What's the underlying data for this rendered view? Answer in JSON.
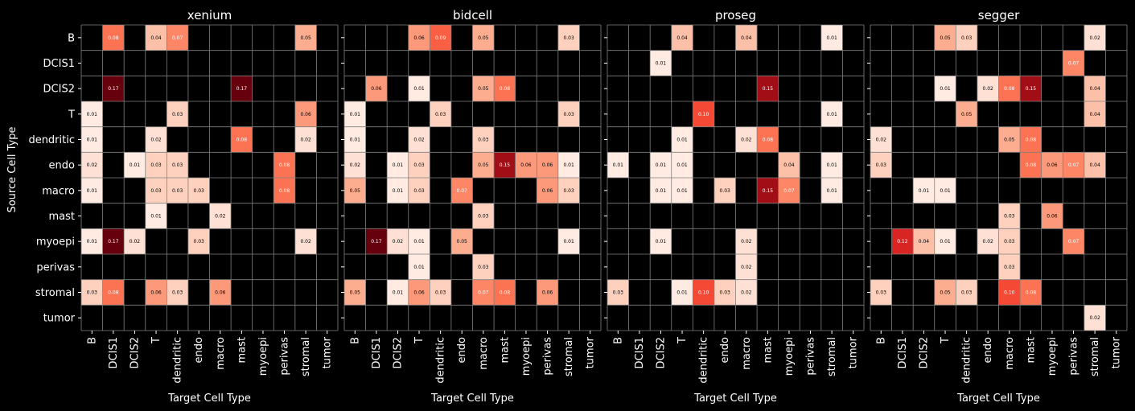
{
  "chart_data": {
    "type": "heatmap",
    "ylabel": "Source Cell Type",
    "xlabel": "Target Cell Type",
    "categories": [
      "B",
      "DCIS1",
      "DCIS2",
      "T",
      "dendritic",
      "endo",
      "macro",
      "mast",
      "myoepi",
      "perivas",
      "stromal",
      "tumor"
    ],
    "colormap": "Reds",
    "vmin": 0,
    "vmax": 0.17,
    "colors": {
      "background": "#000000",
      "text": "#ffffff",
      "grid": "#808080",
      "dark_cell_text": "#ffffff",
      "light_cell_text": "#000000"
    },
    "panels": [
      {
        "title": "xenium",
        "cells": [
          {
            "row": "B",
            "col": "DCIS1",
            "value": 0.08
          },
          {
            "row": "B",
            "col": "T",
            "value": 0.04
          },
          {
            "row": "B",
            "col": "dendritic",
            "value": 0.07
          },
          {
            "row": "B",
            "col": "stromal",
            "value": 0.05
          },
          {
            "row": "DCIS2",
            "col": "DCIS1",
            "value": 0.17
          },
          {
            "row": "DCIS2",
            "col": "mast",
            "value": 0.17
          },
          {
            "row": "T",
            "col": "B",
            "value": 0.01
          },
          {
            "row": "T",
            "col": "dendritic",
            "value": 0.03
          },
          {
            "row": "T",
            "col": "stromal",
            "value": 0.06
          },
          {
            "row": "dendritic",
            "col": "B",
            "value": 0.01
          },
          {
            "row": "dendritic",
            "col": "T",
            "value": 0.02
          },
          {
            "row": "dendritic",
            "col": "mast",
            "value": 0.08
          },
          {
            "row": "dendritic",
            "col": "stromal",
            "value": 0.02
          },
          {
            "row": "endo",
            "col": "B",
            "value": 0.02
          },
          {
            "row": "endo",
            "col": "DCIS2",
            "value": 0.01
          },
          {
            "row": "endo",
            "col": "T",
            "value": 0.03
          },
          {
            "row": "endo",
            "col": "dendritic",
            "value": 0.03
          },
          {
            "row": "endo",
            "col": "perivas",
            "value": 0.08
          },
          {
            "row": "macro",
            "col": "B",
            "value": 0.01
          },
          {
            "row": "macro",
            "col": "T",
            "value": 0.03
          },
          {
            "row": "macro",
            "col": "dendritic",
            "value": 0.03
          },
          {
            "row": "macro",
            "col": "endo",
            "value": 0.03
          },
          {
            "row": "macro",
            "col": "perivas",
            "value": 0.08
          },
          {
            "row": "mast",
            "col": "T",
            "value": 0.01
          },
          {
            "row": "mast",
            "col": "macro",
            "value": 0.02
          },
          {
            "row": "myoepi",
            "col": "B",
            "value": 0.01
          },
          {
            "row": "myoepi",
            "col": "DCIS1",
            "value": 0.17
          },
          {
            "row": "myoepi",
            "col": "DCIS2",
            "value": 0.02
          },
          {
            "row": "myoepi",
            "col": "endo",
            "value": 0.03
          },
          {
            "row": "myoepi",
            "col": "stromal",
            "value": 0.02
          },
          {
            "row": "stromal",
            "col": "B",
            "value": 0.03
          },
          {
            "row": "stromal",
            "col": "DCIS1",
            "value": 0.08
          },
          {
            "row": "stromal",
            "col": "T",
            "value": 0.06
          },
          {
            "row": "stromal",
            "col": "dendritic",
            "value": 0.03
          },
          {
            "row": "stromal",
            "col": "macro",
            "value": 0.06
          }
        ]
      },
      {
        "title": "bidcell",
        "cells": [
          {
            "row": "B",
            "col": "T",
            "value": 0.06
          },
          {
            "row": "B",
            "col": "dendritic",
            "value": 0.09
          },
          {
            "row": "B",
            "col": "macro",
            "value": 0.05
          },
          {
            "row": "B",
            "col": "stromal",
            "value": 0.03
          },
          {
            "row": "DCIS2",
            "col": "DCIS1",
            "value": 0.06
          },
          {
            "row": "DCIS2",
            "col": "T",
            "value": 0.01
          },
          {
            "row": "DCIS2",
            "col": "macro",
            "value": 0.05
          },
          {
            "row": "DCIS2",
            "col": "mast",
            "value": 0.08
          },
          {
            "row": "T",
            "col": "B",
            "value": 0.01
          },
          {
            "row": "T",
            "col": "dendritic",
            "value": 0.03
          },
          {
            "row": "T",
            "col": "stromal",
            "value": 0.03
          },
          {
            "row": "dendritic",
            "col": "B",
            "value": 0.01
          },
          {
            "row": "dendritic",
            "col": "T",
            "value": 0.02
          },
          {
            "row": "dendritic",
            "col": "macro",
            "value": 0.03
          },
          {
            "row": "endo",
            "col": "B",
            "value": 0.02
          },
          {
            "row": "endo",
            "col": "DCIS2",
            "value": 0.01
          },
          {
            "row": "endo",
            "col": "T",
            "value": 0.03
          },
          {
            "row": "endo",
            "col": "macro",
            "value": 0.05
          },
          {
            "row": "endo",
            "col": "mast",
            "value": 0.15
          },
          {
            "row": "endo",
            "col": "myoepi",
            "value": 0.06
          },
          {
            "row": "endo",
            "col": "perivas",
            "value": 0.06
          },
          {
            "row": "endo",
            "col": "stromal",
            "value": 0.01
          },
          {
            "row": "macro",
            "col": "B",
            "value": 0.05
          },
          {
            "row": "macro",
            "col": "DCIS2",
            "value": 0.01
          },
          {
            "row": "macro",
            "col": "T",
            "value": 0.03
          },
          {
            "row": "macro",
            "col": "endo",
            "value": 0.07
          },
          {
            "row": "macro",
            "col": "perivas",
            "value": 0.06
          },
          {
            "row": "macro",
            "col": "stromal",
            "value": 0.03
          },
          {
            "row": "mast",
            "col": "macro",
            "value": 0.03
          },
          {
            "row": "myoepi",
            "col": "DCIS1",
            "value": 0.17
          },
          {
            "row": "myoepi",
            "col": "DCIS2",
            "value": 0.02
          },
          {
            "row": "myoepi",
            "col": "T",
            "value": 0.01
          },
          {
            "row": "myoepi",
            "col": "endo",
            "value": 0.05
          },
          {
            "row": "myoepi",
            "col": "stromal",
            "value": 0.01
          },
          {
            "row": "perivas",
            "col": "T",
            "value": 0.01
          },
          {
            "row": "perivas",
            "col": "macro",
            "value": 0.03
          },
          {
            "row": "stromal",
            "col": "B",
            "value": 0.05
          },
          {
            "row": "stromal",
            "col": "DCIS2",
            "value": 0.01
          },
          {
            "row": "stromal",
            "col": "T",
            "value": 0.06
          },
          {
            "row": "stromal",
            "col": "dendritic",
            "value": 0.03
          },
          {
            "row": "stromal",
            "col": "macro",
            "value": 0.07
          },
          {
            "row": "stromal",
            "col": "mast",
            "value": 0.08
          },
          {
            "row": "stromal",
            "col": "perivas",
            "value": 0.06
          }
        ]
      },
      {
        "title": "proseg",
        "cells": [
          {
            "row": "B",
            "col": "T",
            "value": 0.04
          },
          {
            "row": "B",
            "col": "macro",
            "value": 0.04
          },
          {
            "row": "B",
            "col": "stromal",
            "value": 0.01
          },
          {
            "row": "DCIS1",
            "col": "DCIS2",
            "value": 0.01
          },
          {
            "row": "DCIS2",
            "col": "mast",
            "value": 0.15
          },
          {
            "row": "T",
            "col": "dendritic",
            "value": 0.1
          },
          {
            "row": "T",
            "col": "stromal",
            "value": 0.01
          },
          {
            "row": "dendritic",
            "col": "T",
            "value": 0.01
          },
          {
            "row": "dendritic",
            "col": "macro",
            "value": 0.02
          },
          {
            "row": "dendritic",
            "col": "mast",
            "value": 0.08
          },
          {
            "row": "endo",
            "col": "B",
            "value": 0.01
          },
          {
            "row": "endo",
            "col": "DCIS2",
            "value": 0.01
          },
          {
            "row": "endo",
            "col": "T",
            "value": 0.01
          },
          {
            "row": "endo",
            "col": "myoepi",
            "value": 0.04
          },
          {
            "row": "endo",
            "col": "stromal",
            "value": 0.01
          },
          {
            "row": "macro",
            "col": "DCIS2",
            "value": 0.01
          },
          {
            "row": "macro",
            "col": "T",
            "value": 0.01
          },
          {
            "row": "macro",
            "col": "endo",
            "value": 0.03
          },
          {
            "row": "macro",
            "col": "mast",
            "value": 0.15
          },
          {
            "row": "macro",
            "col": "myoepi",
            "value": 0.07
          },
          {
            "row": "macro",
            "col": "stromal",
            "value": 0.01
          },
          {
            "row": "myoepi",
            "col": "DCIS2",
            "value": 0.01
          },
          {
            "row": "myoepi",
            "col": "macro",
            "value": 0.02
          },
          {
            "row": "perivas",
            "col": "macro",
            "value": 0.02
          },
          {
            "row": "stromal",
            "col": "B",
            "value": 0.03
          },
          {
            "row": "stromal",
            "col": "T",
            "value": 0.01
          },
          {
            "row": "stromal",
            "col": "dendritic",
            "value": 0.1
          },
          {
            "row": "stromal",
            "col": "endo",
            "value": 0.03
          },
          {
            "row": "stromal",
            "col": "macro",
            "value": 0.02
          }
        ]
      },
      {
        "title": "segger",
        "cells": [
          {
            "row": "B",
            "col": "T",
            "value": 0.05
          },
          {
            "row": "B",
            "col": "dendritic",
            "value": 0.03
          },
          {
            "row": "B",
            "col": "stromal",
            "value": 0.02
          },
          {
            "row": "DCIS1",
            "col": "perivas",
            "value": 0.07
          },
          {
            "row": "DCIS2",
            "col": "T",
            "value": 0.01
          },
          {
            "row": "DCIS2",
            "col": "endo",
            "value": 0.02
          },
          {
            "row": "DCIS2",
            "col": "macro",
            "value": 0.08
          },
          {
            "row": "DCIS2",
            "col": "mast",
            "value": 0.15
          },
          {
            "row": "DCIS2",
            "col": "stromal",
            "value": 0.04
          },
          {
            "row": "T",
            "col": "dendritic",
            "value": 0.05
          },
          {
            "row": "T",
            "col": "stromal",
            "value": 0.04
          },
          {
            "row": "dendritic",
            "col": "B",
            "value": 0.02
          },
          {
            "row": "dendritic",
            "col": "macro",
            "value": 0.05
          },
          {
            "row": "dendritic",
            "col": "mast",
            "value": 0.08
          },
          {
            "row": "endo",
            "col": "B",
            "value": 0.03
          },
          {
            "row": "endo",
            "col": "mast",
            "value": 0.08
          },
          {
            "row": "endo",
            "col": "myoepi",
            "value": 0.06
          },
          {
            "row": "endo",
            "col": "perivas",
            "value": 0.07
          },
          {
            "row": "endo",
            "col": "stromal",
            "value": 0.04
          },
          {
            "row": "macro",
            "col": "DCIS2",
            "value": 0.01
          },
          {
            "row": "macro",
            "col": "T",
            "value": 0.01
          },
          {
            "row": "mast",
            "col": "macro",
            "value": 0.03
          },
          {
            "row": "mast",
            "col": "myoepi",
            "value": 0.06
          },
          {
            "row": "myoepi",
            "col": "DCIS1",
            "value": 0.12
          },
          {
            "row": "myoepi",
            "col": "DCIS2",
            "value": 0.04
          },
          {
            "row": "myoepi",
            "col": "T",
            "value": 0.01
          },
          {
            "row": "myoepi",
            "col": "endo",
            "value": 0.02
          },
          {
            "row": "myoepi",
            "col": "macro",
            "value": 0.03
          },
          {
            "row": "myoepi",
            "col": "perivas",
            "value": 0.07
          },
          {
            "row": "perivas",
            "col": "macro",
            "value": 0.03
          },
          {
            "row": "stromal",
            "col": "B",
            "value": 0.03
          },
          {
            "row": "stromal",
            "col": "T",
            "value": 0.05
          },
          {
            "row": "stromal",
            "col": "dendritic",
            "value": 0.03
          },
          {
            "row": "stromal",
            "col": "macro",
            "value": 0.1
          },
          {
            "row": "stromal",
            "col": "mast",
            "value": 0.08
          },
          {
            "row": "tumor",
            "col": "stromal",
            "value": 0.02
          }
        ]
      }
    ]
  }
}
